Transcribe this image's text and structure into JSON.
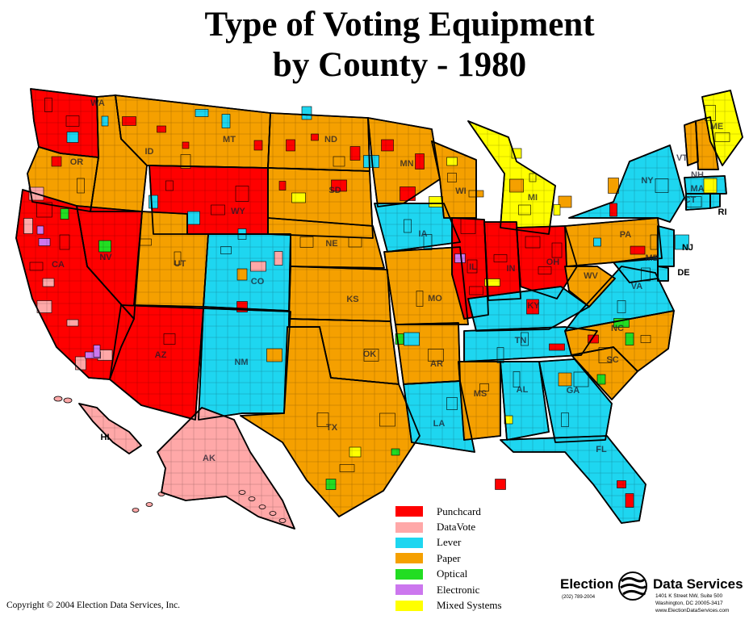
{
  "title_line1": "Type of Voting Equipment",
  "title_line2": "by County - 1980",
  "colors": {
    "punchcard": "#ff0000",
    "datavote": "#ffa8a8",
    "lever": "#1ed6f0",
    "paper": "#f5a000",
    "optical": "#22dd22",
    "electronic": "#cc77ee",
    "mixed": "#ffff00",
    "border": "#000000"
  },
  "legend": [
    {
      "label": "Punchcard",
      "color": "#ff0000"
    },
    {
      "label": "DataVote",
      "color": "#ffa8a8"
    },
    {
      "label": "Lever",
      "color": "#1ed6f0"
    },
    {
      "label": "Paper",
      "color": "#f5a000"
    },
    {
      "label": "Optical",
      "color": "#22dd22"
    },
    {
      "label": "Electronic",
      "color": "#cc77ee"
    },
    {
      "label": "Mixed Systems",
      "color": "#ffff00"
    }
  ],
  "state_labels": [
    "WA",
    "OR",
    "ID",
    "MT",
    "WY",
    "NV",
    "UT",
    "CO",
    "AZ",
    "NM",
    "ND",
    "SD",
    "NE",
    "KS",
    "OK",
    "TX",
    "MN",
    "IA",
    "MO",
    "AR",
    "LA",
    "WI",
    "IL",
    "MI",
    "IN",
    "OH",
    "KY",
    "TN",
    "MS",
    "AL",
    "GA",
    "FL",
    "SC",
    "NC",
    "VA",
    "WV",
    "PA",
    "NY",
    "VT",
    "NH",
    "ME",
    "MA",
    "RI",
    "CT",
    "NJ",
    "DE",
    "MD",
    "CA",
    "AK",
    "HI"
  ],
  "outside_labels": [
    "RI",
    "NJ",
    "DE",
    "HI"
  ],
  "copyright": "Copyright © 2004 Election Data Services, Inc.",
  "logo": {
    "left": "Election",
    "right": "Data Services",
    "phone": "(202) 789-2004",
    "address1": "1401 K Street NW, Suite 500",
    "address2": "Washington, DC  20005-3417",
    "website": "www.ElectionDataServices.com"
  }
}
